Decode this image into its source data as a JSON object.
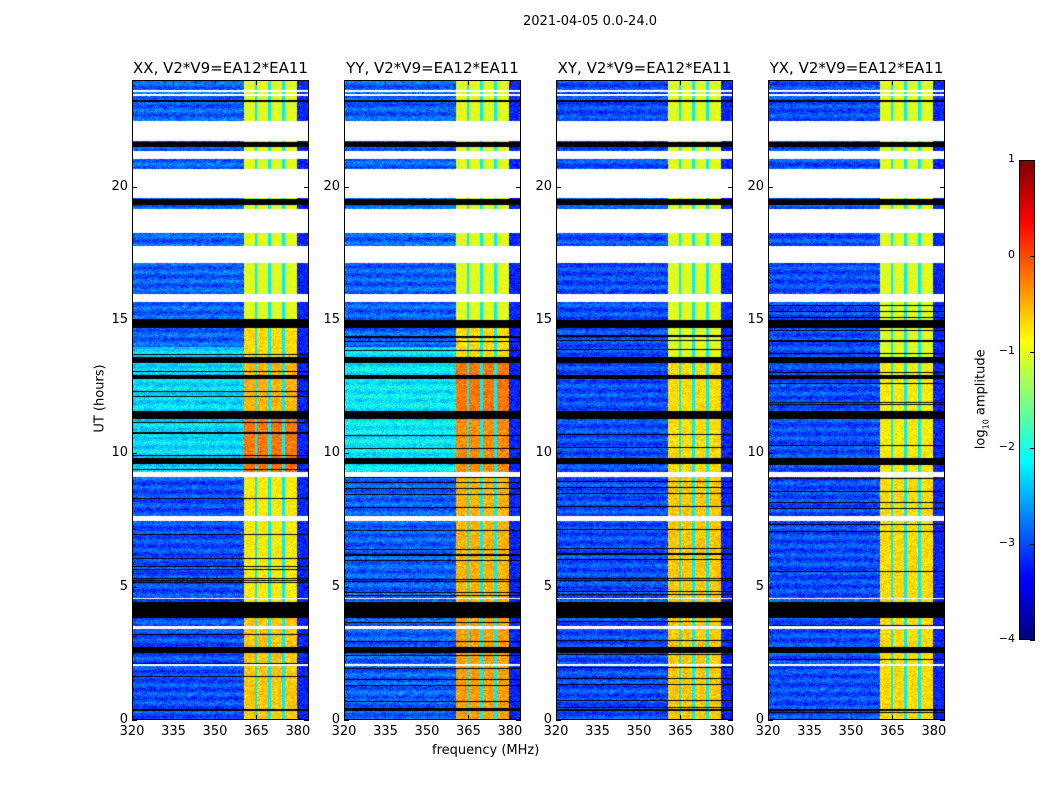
{
  "chart_data": {
    "type": "heatmap",
    "suptitle": "2021-04-05 0.0-24.0",
    "xlabel": "frequency (MHz)",
    "ylabel": "UT (hours)",
    "xlim": [
      320,
      384
    ],
    "ylim": [
      0,
      24
    ],
    "xticks": [
      320,
      335,
      350,
      365,
      380
    ],
    "yticks": [
      0,
      5,
      10,
      15,
      20
    ],
    "colorbar": {
      "label_main": "log",
      "label_sub": "10",
      "label_rest": " amplitude",
      "range": [
        -4,
        1
      ],
      "ticks": [
        1,
        0,
        -1,
        -2,
        -3,
        -4
      ],
      "colormap": "jet"
    },
    "band_mhz": [
      360.5,
      380
    ],
    "band_notches_mhz": [
      365,
      370,
      375
    ],
    "white_gaps_hours": [
      [
        21.73,
        22.48
      ],
      [
        21.05,
        21.35
      ],
      [
        19.6,
        20.7
      ],
      [
        18.3,
        19.2
      ],
      [
        17.15,
        17.8
      ],
      [
        15.7,
        16.0
      ],
      [
        9.1,
        9.3
      ],
      [
        7.45,
        7.65
      ],
      [
        4.5,
        4.56
      ],
      [
        3.4,
        3.5
      ],
      [
        2.0,
        2.08
      ],
      [
        23.45,
        23.52
      ],
      [
        23.6,
        23.65
      ]
    ],
    "flagged_hours": [
      [
        21.5,
        21.7
      ],
      [
        23.2,
        23.3
      ],
      [
        19.35,
        19.55
      ],
      [
        13.4,
        13.6
      ],
      [
        11.3,
        11.6
      ],
      [
        9.6,
        9.8
      ],
      [
        3.8,
        4.4
      ],
      [
        2.5,
        2.7
      ],
      [
        14.7,
        15.0
      ],
      [
        12.8,
        12.95
      ],
      [
        0.3,
        0.36
      ]
    ],
    "panels": [
      {
        "title": "XX, V2*V9=EA12*EA11",
        "background": [
          [
            0,
            9,
            -3.0
          ],
          [
            9.3,
            14,
            -2.3
          ],
          [
            14,
            24,
            -2.9
          ]
        ],
        "band": [
          [
            0,
            4,
            -0.6
          ],
          [
            4,
            9.3,
            -0.8
          ],
          [
            9.3,
            11.5,
            -0.2
          ],
          [
            11.5,
            13.5,
            -0.5
          ],
          [
            13.5,
            15,
            -0.7
          ],
          [
            15,
            24,
            -1.0
          ]
        ]
      },
      {
        "title": "YY, V2*V9=EA12*EA11",
        "background": [
          [
            0,
            9,
            -2.9
          ],
          [
            9.3,
            14,
            -2.2
          ],
          [
            14,
            24,
            -2.9
          ]
        ],
        "band": [
          [
            0,
            4,
            -0.4
          ],
          [
            4,
            9.3,
            -0.5
          ],
          [
            9.3,
            11.5,
            -0.3
          ],
          [
            11.5,
            13.5,
            -0.2
          ],
          [
            13.5,
            15,
            -0.7
          ],
          [
            15,
            24,
            -1.0
          ]
        ]
      },
      {
        "title": "XY, V2*V9=EA12*EA11",
        "background": [
          [
            0,
            24,
            -3.0
          ]
        ],
        "band": [
          [
            0,
            9.3,
            -0.6
          ],
          [
            9.3,
            13.5,
            -0.7
          ],
          [
            13.5,
            24,
            -1.0
          ]
        ]
      },
      {
        "title": "YX, V2*V9=EA12*EA11",
        "background": [
          [
            0,
            24,
            -3.0
          ]
        ],
        "band": [
          [
            0,
            9.3,
            -0.7
          ],
          [
            9.3,
            13.5,
            -0.8
          ],
          [
            13.5,
            24,
            -1.0
          ]
        ]
      }
    ]
  }
}
